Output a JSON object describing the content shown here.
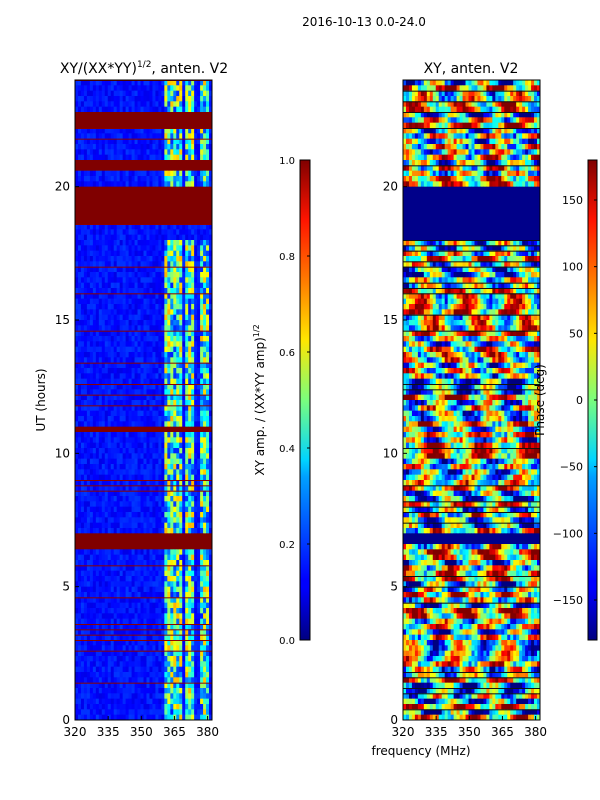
{
  "figure": {
    "suptitle": "2016-10-13 0.0-24.0",
    "xlabel": "frequency (MHz)"
  },
  "chart_data": [
    {
      "type": "heatmap",
      "title": "XY/(XX*YY)",
      "title_sup": "1/2",
      "title_rest": ", anten. V2",
      "xlabel": "",
      "ylabel": "UT (hours)",
      "xlim": [
        320,
        382
      ],
      "ylim": [
        0,
        24
      ],
      "x_ticks": [
        320,
        335,
        350,
        365,
        380
      ],
      "y_ticks": [
        0,
        5,
        10,
        15,
        20
      ],
      "colormap": "jet",
      "colorbar": {
        "label": "XY amp. / (XX*YY amp)",
        "label_sup": "1/2",
        "range": [
          0.0,
          1.0
        ],
        "ticks": [
          "0.0",
          "0.2",
          "0.4",
          "0.6",
          "0.8",
          "1.0"
        ],
        "tick_values": [
          0.0,
          0.2,
          0.4,
          0.6,
          0.8,
          1.0
        ]
      },
      "saturated_bands_hours": [
        [
          22.2,
          22.8
        ],
        [
          20.6,
          21.0
        ],
        [
          18.6,
          19.9
        ],
        [
          6.5,
          6.9
        ],
        [
          10.8,
          11.0
        ]
      ],
      "bright_freq_ranges_mhz": [
        [
          361,
          369
        ],
        [
          370,
          374
        ],
        [
          376,
          381
        ]
      ],
      "background_value": 0.1
    },
    {
      "type": "heatmap",
      "title": "XY, anten. V2",
      "xlabel": "",
      "ylabel": "",
      "xlim": [
        320,
        382
      ],
      "ylim": [
        0,
        24
      ],
      "x_ticks": [
        320,
        335,
        350,
        365,
        380
      ],
      "y_ticks": [
        0,
        5,
        10,
        15,
        20
      ],
      "colormap": "jet",
      "colorbar": {
        "label": "Phase (deg)",
        "range": [
          -180,
          180
        ],
        "ticks": [
          "150",
          "100",
          "50",
          "0",
          "−50",
          "−100",
          "−150"
        ],
        "tick_values": [
          150,
          100,
          50,
          0,
          -50,
          -100,
          -150
        ]
      },
      "uniform_bands_hours": [
        [
          18.0,
          19.9
        ],
        [
          6.6,
          6.9
        ],
        [
          0.0,
          0.1
        ]
      ],
      "band_value_deg": -178
    }
  ]
}
